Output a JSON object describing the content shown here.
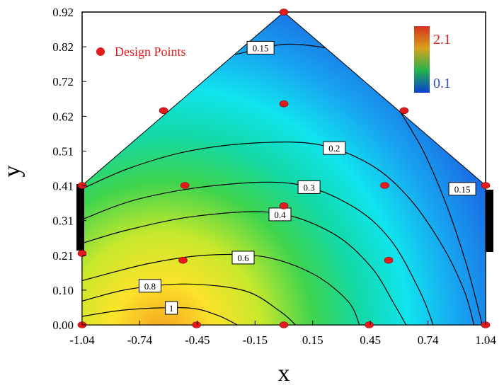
{
  "chart_data": {
    "type": "contour",
    "xlabel": "x",
    "ylabel": "y",
    "xlim": [
      -1.04,
      1.04
    ],
    "ylim": [
      0.0,
      0.92
    ],
    "x_ticks": [
      "-1.04",
      "-0.74",
      "-0.45",
      "-0.15",
      "0.15",
      "0.45",
      "0.74",
      "1.04"
    ],
    "y_ticks": [
      "0.00",
      "0.10",
      "0.21",
      "0.31",
      "0.41",
      "0.51",
      "0.62",
      "0.72",
      "0.82",
      "0.92"
    ],
    "legend": {
      "label": "Design Points",
      "position": "top-left",
      "marker_color": "#e41a1c"
    },
    "colorbar": {
      "max_label": "2.1",
      "min_label": "0.1",
      "max_label_color": "#e41a1c",
      "min_label_color": "#2a4fd6",
      "gradient_colors": [
        "#d7301f",
        "#d9a21b",
        "#22b24c",
        "#0a3fd0"
      ]
    },
    "boundary": [
      [
        -1.04,
        0.0
      ],
      [
        1.04,
        0.0
      ],
      [
        1.04,
        0.41
      ],
      [
        0.0,
        0.92
      ],
      [
        -1.04,
        0.41
      ]
    ],
    "design_points": [
      [
        0.0,
        0.92
      ],
      [
        -0.62,
        0.63
      ],
      [
        0.62,
        0.63
      ],
      [
        0.0,
        0.65
      ],
      [
        -1.04,
        0.41
      ],
      [
        1.04,
        0.41
      ],
      [
        -0.51,
        0.41
      ],
      [
        0.52,
        0.41
      ],
      [
        0.0,
        0.35
      ],
      [
        -1.04,
        0.21
      ],
      [
        -0.52,
        0.19
      ],
      [
        0.54,
        0.19
      ],
      [
        -1.04,
        0.0
      ],
      [
        -0.45,
        0.0
      ],
      [
        0.0,
        0.0
      ],
      [
        0.44,
        0.0
      ],
      [
        1.04,
        0.0
      ]
    ],
    "contours": [
      {
        "level": "1",
        "points": [
          [
            -1.04,
            0.025
          ],
          [
            -0.8,
            0.045
          ],
          [
            -0.5,
            0.05
          ],
          [
            -0.35,
            0.03
          ],
          [
            -0.24,
            0.0
          ]
        ],
        "label_at": [
          -0.58,
          0.05
        ]
      },
      {
        "level": "0.8",
        "points": [
          [
            -1.04,
            0.07
          ],
          [
            -0.8,
            0.105
          ],
          [
            -0.5,
            0.12
          ],
          [
            -0.2,
            0.1
          ],
          [
            -0.02,
            0.04
          ],
          [
            0.06,
            0.0
          ]
        ],
        "label_at": [
          -0.69,
          0.115
        ]
      },
      {
        "level": "0.6",
        "points": [
          [
            -1.04,
            0.13
          ],
          [
            -0.7,
            0.18
          ],
          [
            -0.4,
            0.205
          ],
          [
            -0.1,
            0.2
          ],
          [
            0.15,
            0.15
          ],
          [
            0.33,
            0.07
          ],
          [
            0.39,
            0.0
          ]
        ],
        "label_at": [
          -0.21,
          0.198
        ]
      },
      {
        "level": "0.4",
        "points": [
          [
            -1.04,
            0.24
          ],
          [
            -0.8,
            0.28
          ],
          [
            -0.45,
            0.32
          ],
          [
            -0.05,
            0.33
          ],
          [
            0.25,
            0.27
          ],
          [
            0.45,
            0.17
          ],
          [
            0.57,
            0.06
          ],
          [
            0.63,
            0.0
          ]
        ],
        "label_at": [
          -0.02,
          0.325
        ]
      },
      {
        "level": "0.3",
        "points": [
          [
            -1.04,
            0.31
          ],
          [
            -0.75,
            0.37
          ],
          [
            -0.35,
            0.41
          ],
          [
            0.05,
            0.415
          ],
          [
            0.35,
            0.35
          ],
          [
            0.55,
            0.25
          ],
          [
            0.7,
            0.1
          ],
          [
            0.77,
            0.0
          ]
        ],
        "label_at": [
          0.13,
          0.405
        ]
      },
      {
        "level": "0.2",
        "points": [
          [
            -1.04,
            0.4
          ],
          [
            -0.8,
            0.46
          ],
          [
            -0.5,
            0.51
          ],
          [
            -0.15,
            0.535
          ],
          [
            0.18,
            0.53
          ],
          [
            0.45,
            0.47
          ],
          [
            0.65,
            0.37
          ],
          [
            0.82,
            0.23
          ],
          [
            0.93,
            0.1
          ],
          [
            0.98,
            0.0
          ]
        ],
        "label_at": [
          0.26,
          0.52
        ]
      },
      {
        "level": "0.15",
        "points": [
          [
            -0.25,
            0.795
          ],
          [
            0.0,
            0.825
          ],
          [
            0.22,
            0.815
          ]
        ],
        "label_at": [
          -0.12,
          0.815
        ]
      },
      {
        "level": "0.15",
        "points": [
          [
            0.58,
            0.645
          ],
          [
            0.72,
            0.51
          ],
          [
            0.84,
            0.35
          ],
          [
            0.94,
            0.18
          ],
          [
            1.01,
            0.03
          ],
          [
            1.02,
            0.0
          ]
        ],
        "label_at": [
          0.92,
          0.4
        ]
      }
    ]
  }
}
